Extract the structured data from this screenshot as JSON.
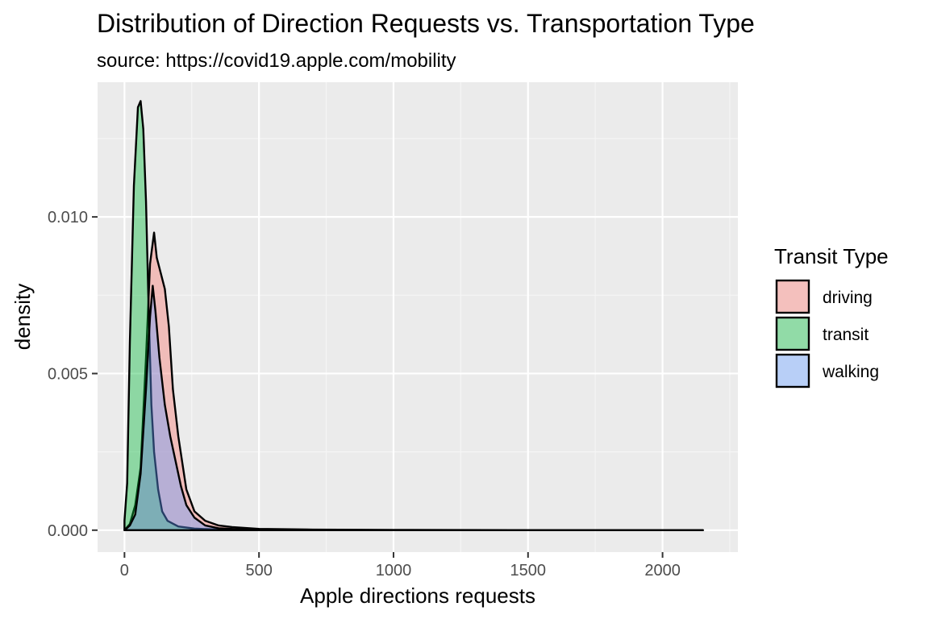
{
  "chart_data": {
    "type": "area",
    "title": "Distribution of Direction Requests vs. Transportation Type",
    "subtitle": "source: https://covid19.apple.com/mobility",
    "xlabel": "Apple directions requests",
    "ylabel": "density",
    "xlim": [
      -100,
      2280
    ],
    "ylim": [
      -0.0007,
      0.0143
    ],
    "x_ticks": [
      0,
      500,
      1000,
      1500,
      2000
    ],
    "y_ticks": [
      0.0,
      0.005,
      0.01
    ],
    "x_tick_labels": [
      "0",
      "500",
      "1000",
      "1500",
      "2000"
    ],
    "y_tick_labels": [
      "0.000",
      "0.005",
      "0.010"
    ],
    "grid": true,
    "legend": {
      "title": "Transit Type",
      "position": "right"
    },
    "series": [
      {
        "name": "driving",
        "color": "#F8766D",
        "points": [
          [
            0,
            0.0
          ],
          [
            20,
            0.0002
          ],
          [
            40,
            0.0008
          ],
          [
            60,
            0.002
          ],
          [
            80,
            0.0055
          ],
          [
            95,
            0.0085
          ],
          [
            110,
            0.0095
          ],
          [
            120,
            0.0087
          ],
          [
            135,
            0.0082
          ],
          [
            150,
            0.0077
          ],
          [
            165,
            0.0065
          ],
          [
            180,
            0.0045
          ],
          [
            200,
            0.003
          ],
          [
            230,
            0.0013
          ],
          [
            260,
            0.0006
          ],
          [
            300,
            0.0003
          ],
          [
            350,
            0.00015
          ],
          [
            400,
            0.0001
          ],
          [
            500,
            4e-05
          ],
          [
            700,
            2e-05
          ],
          [
            1000,
            1e-05
          ],
          [
            1500,
            0.0
          ],
          [
            2150,
            0.0
          ]
        ]
      },
      {
        "name": "transit",
        "color": "#00BA38",
        "points": [
          [
            0,
            0.0003
          ],
          [
            10,
            0.0015
          ],
          [
            20,
            0.006
          ],
          [
            35,
            0.011
          ],
          [
            50,
            0.0135
          ],
          [
            60,
            0.0137
          ],
          [
            70,
            0.0128
          ],
          [
            80,
            0.0105
          ],
          [
            90,
            0.007
          ],
          [
            100,
            0.004
          ],
          [
            110,
            0.0025
          ],
          [
            125,
            0.0013
          ],
          [
            140,
            0.0006
          ],
          [
            160,
            0.0003
          ],
          [
            200,
            0.00012
          ],
          [
            260,
            5e-05
          ],
          [
            350,
            2e-05
          ],
          [
            500,
            0.0
          ],
          [
            2150,
            0.0
          ]
        ]
      },
      {
        "name": "walking",
        "color": "#619CFF",
        "points": [
          [
            0,
            0.0
          ],
          [
            20,
            0.00015
          ],
          [
            40,
            0.0005
          ],
          [
            60,
            0.0018
          ],
          [
            80,
            0.0045
          ],
          [
            95,
            0.0068
          ],
          [
            105,
            0.0078
          ],
          [
            115,
            0.007
          ],
          [
            130,
            0.0055
          ],
          [
            150,
            0.004
          ],
          [
            170,
            0.003
          ],
          [
            190,
            0.0022
          ],
          [
            210,
            0.0014
          ],
          [
            230,
            0.0008
          ],
          [
            260,
            0.0004
          ],
          [
            300,
            0.00015
          ],
          [
            350,
            6e-05
          ],
          [
            450,
            2e-05
          ],
          [
            700,
            0.0
          ],
          [
            2150,
            0.0
          ]
        ]
      }
    ]
  }
}
